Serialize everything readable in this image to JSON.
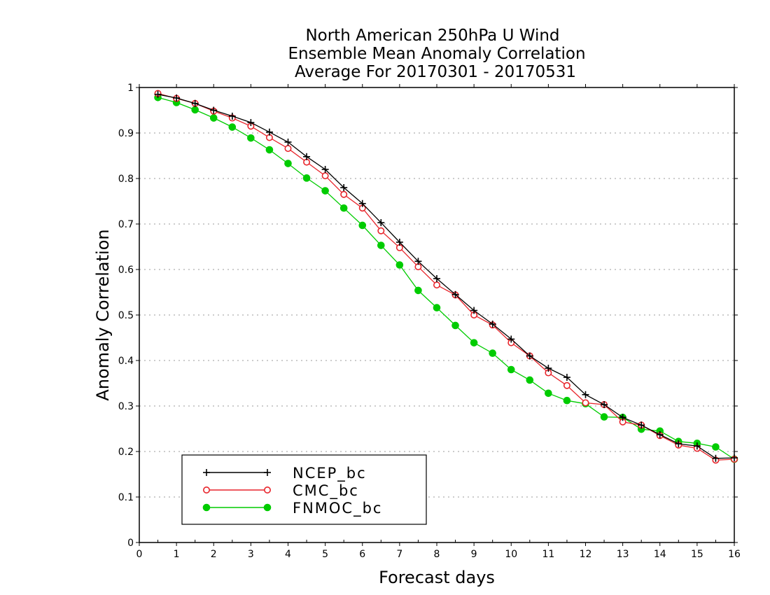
{
  "chart_data": {
    "type": "line",
    "title": [
      "North American 250hPa U Wind",
      "Ensemble Mean Anomaly Correlation",
      "Average For 20170301 - 20170531"
    ],
    "xlabel": "Forecast days",
    "ylabel": "Anomaly Correlation",
    "xlim": [
      0,
      16
    ],
    "ylim": [
      0,
      1
    ],
    "xticks": [
      "0",
      "1",
      "2",
      "3",
      "4",
      "5",
      "6",
      "7",
      "8",
      "9",
      "10",
      "11",
      "12",
      "13",
      "14",
      "15",
      "16"
    ],
    "yticks": [
      "0",
      "0.1",
      "0.2",
      "0.3",
      "0.4",
      "0.5",
      "0.6",
      "0.7",
      "0.8",
      "0.9",
      "1"
    ],
    "grid": "horizontal dotted",
    "legend_position": "bottom-left",
    "x": [
      0.5,
      1,
      1.5,
      2,
      2.5,
      3,
      3.5,
      4,
      4.5,
      5,
      5.5,
      6,
      6.5,
      7,
      7.5,
      8,
      8.5,
      9,
      9.5,
      10,
      10.5,
      11,
      11.5,
      12,
      12.5,
      13,
      13.5,
      14,
      14.5,
      15,
      15.5,
      16
    ],
    "series": [
      {
        "name": "NCEP_bc",
        "color": "#000000",
        "marker": "plus",
        "values": [
          0.985,
          0.977,
          0.965,
          0.95,
          0.937,
          0.923,
          0.902,
          0.88,
          0.848,
          0.82,
          0.78,
          0.745,
          0.703,
          0.66,
          0.618,
          0.58,
          0.545,
          0.51,
          0.48,
          0.447,
          0.41,
          0.383,
          0.363,
          0.325,
          0.303,
          0.275,
          0.258,
          0.237,
          0.217,
          0.212,
          0.185,
          0.186
        ]
      },
      {
        "name": "CMC_bc",
        "color": "#e8242b",
        "marker": "open-circle",
        "values": [
          0.987,
          0.976,
          0.965,
          0.948,
          0.933,
          0.915,
          0.89,
          0.866,
          0.836,
          0.806,
          0.765,
          0.735,
          0.685,
          0.648,
          0.606,
          0.566,
          0.544,
          0.5,
          0.478,
          0.439,
          0.41,
          0.373,
          0.345,
          0.307,
          0.303,
          0.265,
          0.258,
          0.235,
          0.214,
          0.207,
          0.181,
          0.183
        ]
      },
      {
        "name": "FNMOC_bc",
        "color": "#00cc00",
        "marker": "filled-circle",
        "values": [
          0.978,
          0.967,
          0.951,
          0.933,
          0.913,
          0.889,
          0.863,
          0.833,
          0.801,
          0.773,
          0.735,
          0.697,
          0.653,
          0.61,
          0.554,
          0.516,
          0.477,
          0.439,
          0.416,
          0.38,
          0.357,
          0.328,
          0.312,
          0.305,
          0.276,
          0.275,
          0.249,
          0.245,
          0.222,
          0.218,
          0.21,
          0.183
        ]
      }
    ]
  }
}
